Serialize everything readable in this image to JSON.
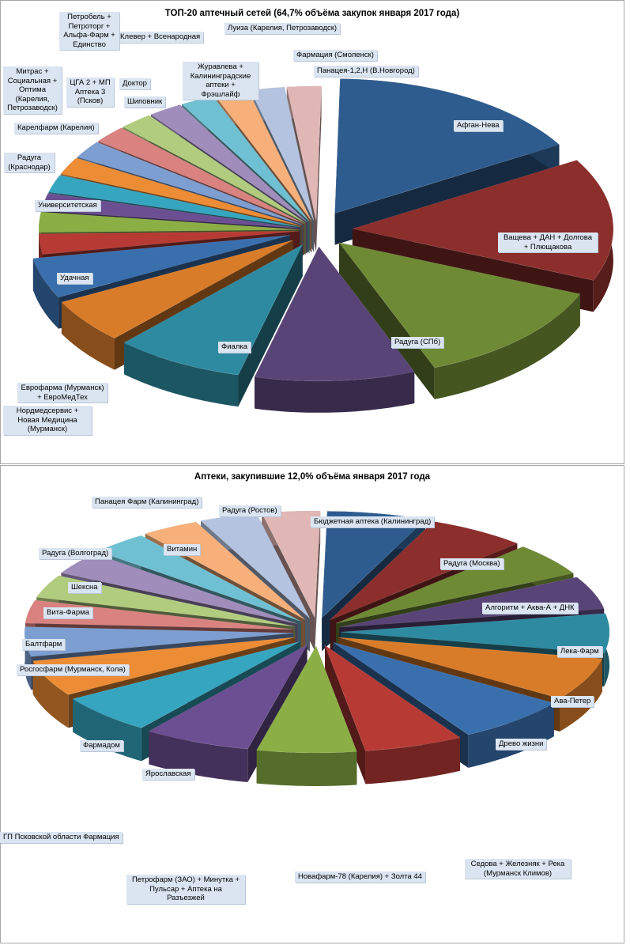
{
  "chart_data": [
    {
      "type": "pie",
      "title": "ТОП-20 аптечный сетей (64,7% объёма закупок января  2017 года)",
      "labels": [
        "Афган-Нева",
        "Ващева + ДАН + Долгова + Плющакова",
        "Радуга (СПб)",
        "Фиалка",
        "Нордмедсервис + Новая Медицина (Мурманск)",
        "Еврофарма (Мурманск) + ЕвроМедТех",
        "Удачная",
        "Университетская",
        "Радуга (Краснодар)",
        "Карелфарм (Карелия)",
        "Митрас + Социальная + Оптима (Карелия, Петрозаводск)",
        "ЦГА 2 + МП Аптека 3 (Псков)",
        "Шиповник",
        "Доктор",
        "Клевер + Всенародная",
        "Петробель + Петроторг + Альфа-Фарм + Единство",
        "Журавлева + Калининградские аптеки + Фрэшлайф",
        "Луиза (Карелия, Петрозаводск)",
        "Фармация (Смоленск)",
        "Панацея-1,2,Н (В.Новгород)"
      ],
      "values": [
        15.3,
        14.0,
        12.1,
        9.4,
        7.6,
        5.1,
        4.6,
        2.3,
        2.3,
        2.0,
        2.0,
        2.0,
        2.0,
        2.0,
        2.0,
        2.0,
        2.0,
        2.0,
        2.0,
        2.0
      ],
      "colors": [
        "#2e5c8e",
        "#8c2e2c",
        "#6f8a35",
        "#594477",
        "#2e8aa0",
        "#d97c2a",
        "#3a6fae",
        "#b73a35",
        "#8bae45",
        "#6c4f92",
        "#36a5bf",
        "#ec8c34",
        "#7d9ed1",
        "#d98280",
        "#b1cc7e",
        "#a08dbc",
        "#6fc0d2",
        "#f7b07a",
        "#b3c3e0",
        "#e0b7b5"
      ]
    },
    {
      "type": "pie",
      "title": "Аптеки, закупившие 12,0% объёма января 2017 года",
      "labels": [
        "Бюджетная аптека (Калининград)",
        "Радуга (Москва)",
        "Алгоритм + Аква-А + ДНК",
        "Лека-Фарм",
        "Ава-Петер",
        "Древо жизни",
        "Седова + Железняк + Река (Мурманск Климов)",
        "Новафарм-78 (Карелия) + Золта 44",
        "Петрофарм (ЗАО) + Минутка + Пульсар + Аптека на Разъезжей",
        "Ярославская",
        "Фармадом",
        "ГП Псковской области Фармация",
        "Росгосфарм (Мурманск, Кола)",
        "Балтфарм",
        "Вита-Фарма",
        "Шексна",
        "Радуга (Волгоград)",
        "Витамин",
        "Панацея Фарм (Калининград)",
        "Радуга (Ростов)"
      ],
      "values": [
        6.0,
        6.0,
        5.0,
        5.0,
        6.0,
        6.5,
        7.0,
        6.0,
        6.0,
        6.5,
        6.0,
        5.5,
        4.5,
        3.5,
        3.5,
        3.5,
        3.5,
        3.5,
        3.5,
        3.5
      ],
      "colors": [
        "#2e5c8e",
        "#8c2e2c",
        "#6f8a35",
        "#594477",
        "#2e8aa0",
        "#d97c2a",
        "#3a6fae",
        "#b73a35",
        "#8bae45",
        "#6c4f92",
        "#36a5bf",
        "#ec8c34",
        "#7d9ed1",
        "#d98280",
        "#b1cc7e",
        "#a08dbc",
        "#6fc0d2",
        "#f7b07a",
        "#b3c3e0",
        "#e0b7b5"
      ]
    }
  ]
}
